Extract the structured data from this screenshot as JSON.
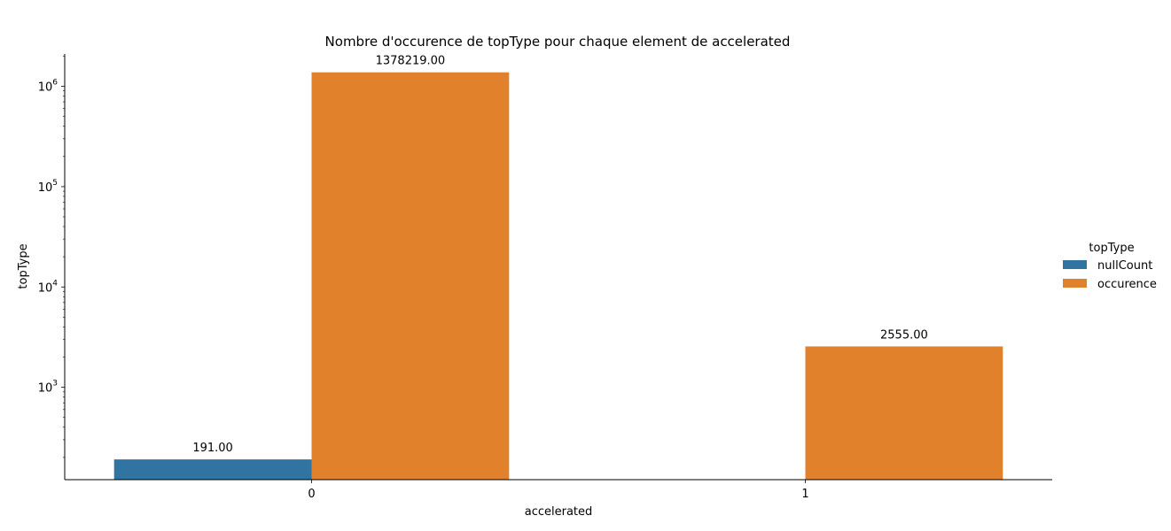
{
  "chart_data": {
    "type": "bar",
    "title": "Nombre d'occurence de topType pour chaque element de accelerated",
    "xlabel": "accelerated",
    "ylabel": "topType",
    "yscale": "log",
    "ylim": [
      120,
      2100000
    ],
    "categories": [
      "0",
      "1"
    ],
    "series": [
      {
        "name": "nullCount",
        "color": "#3274a1",
        "values": [
          191,
          null
        ],
        "labels": [
          "191.00",
          null
        ]
      },
      {
        "name": "occurence",
        "color": "#e1812c",
        "values": [
          1378219,
          2555
        ],
        "labels": [
          "1378219.00",
          "2555.00"
        ]
      }
    ],
    "y_ticks": [
      {
        "value": 1000,
        "base": "10",
        "exp": "3"
      },
      {
        "value": 10000,
        "base": "10",
        "exp": "4"
      },
      {
        "value": 100000,
        "base": "10",
        "exp": "5"
      },
      {
        "value": 1000000,
        "base": "10",
        "exp": "6"
      }
    ],
    "legend": {
      "title": "topType",
      "placement": "right"
    },
    "grid": false
  }
}
